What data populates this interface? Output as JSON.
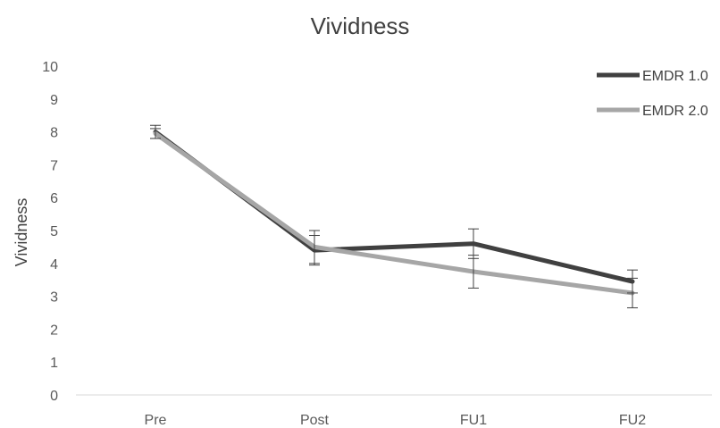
{
  "chart_data": {
    "type": "line",
    "title": "Vividness",
    "xlabel": "",
    "ylabel": "Vividness",
    "categories": [
      "Pre",
      "Post",
      "FU1",
      "FU2"
    ],
    "ylim": [
      0,
      10
    ],
    "yticks": [
      0,
      1,
      2,
      3,
      4,
      5,
      6,
      7,
      8,
      9,
      10
    ],
    "grid": false,
    "legend": "top-right",
    "series": [
      {
        "name": "EMDR 1.0",
        "color": "#404040",
        "values": [
          8.0,
          4.4,
          4.6,
          3.45
        ],
        "error": [
          0.2,
          0.45,
          0.45,
          0.35
        ]
      },
      {
        "name": "EMDR 2.0",
        "color": "#a6a6a6",
        "values": [
          7.95,
          4.5,
          3.75,
          3.1
        ],
        "error": [
          0.15,
          0.5,
          0.5,
          0.45
        ]
      }
    ]
  }
}
